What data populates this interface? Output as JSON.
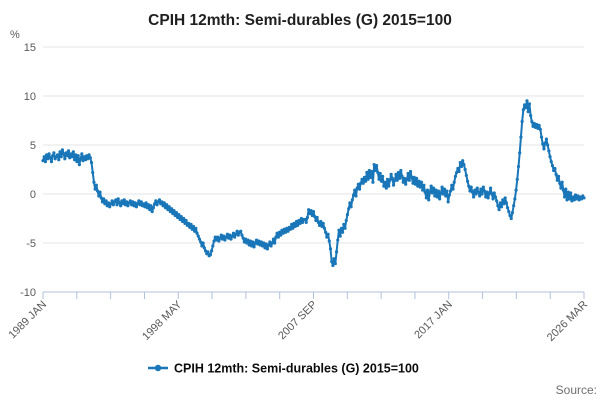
{
  "title": "CPIH 12mth: Semi-durables (G) 2015=100",
  "y_axis": {
    "unit_label": "%",
    "tick_labels": [
      "15",
      "10",
      "5",
      "0",
      "-5",
      "-10"
    ],
    "tick_values": [
      15,
      10,
      5,
      0,
      -5,
      -10
    ],
    "min": -10,
    "max": 15
  },
  "x_axis": {
    "tick_labels": [
      "1989 JAN",
      "1998 MAY",
      "2007 SEP",
      "2017 JAN",
      "2026 MAR"
    ],
    "minor_tick_count": 17,
    "labeled_every": 4
  },
  "legend": {
    "label": "CPIH 12mth: Semi-durables (G) 2015=100"
  },
  "source_label": "Source:",
  "colors": {
    "line": "#1976b8",
    "grid": "#e6e6e6",
    "axis": "#b0c1db",
    "label_text": "#595959",
    "title_text": "#1f1f1f",
    "legend_text": "#0c0c0c",
    "source_text": "#6f6f6f"
  },
  "chart_data": {
    "type": "line",
    "title": "CPIH 12mth: Semi-durables (G) 2015=100",
    "xlabel": "",
    "ylabel": "%",
    "ylim": [
      -10,
      15
    ],
    "grid": "horizontal",
    "legend_position": "bottom",
    "x_start": "1989 JAN",
    "x_end": "2026 MAR",
    "frequency": "monthly",
    "series": [
      {
        "name": "CPIH 12mth: Semi-durables (G) 2015=100",
        "values": [
          3.4,
          3.8,
          3.3,
          4.0,
          3.6,
          4.1,
          3.7,
          3.3,
          3.9,
          4.2,
          3.6,
          3.8,
          4.0,
          3.5,
          4.3,
          3.8,
          4.5,
          4.1,
          3.6,
          4.2,
          3.9,
          4.4,
          3.7,
          4.1,
          3.8,
          4.3,
          3.5,
          4.0,
          3.3,
          3.9,
          3.0,
          3.6,
          4.1,
          3.4,
          3.8,
          3.5,
          3.9,
          3.6,
          4.0,
          3.7,
          3.2,
          2.2,
          1.2,
          0.5,
          0.9,
          0.3,
          -0.2,
          0.2,
          -0.4,
          -0.8,
          -0.5,
          -1.0,
          -0.7,
          -1.2,
          -0.9,
          -1.3,
          -1.0,
          -0.7,
          -1.1,
          -0.8,
          -0.6,
          -1.1,
          -0.5,
          -0.9,
          -1.2,
          -0.7,
          -1.0,
          -0.6,
          -1.1,
          -0.8,
          -1.2,
          -0.9,
          -0.7,
          -1.1,
          -0.8,
          -1.2,
          -0.9,
          -1.3,
          -1.0,
          -0.7,
          -1.1,
          -0.8,
          -1.2,
          -1.0,
          -1.3,
          -0.9,
          -1.4,
          -1.1,
          -1.6,
          -1.2,
          -1.8,
          -1.4,
          -1.0,
          -0.7,
          -1.1,
          -0.8,
          -0.6,
          -1.0,
          -0.8,
          -1.2,
          -0.9,
          -1.4,
          -1.1,
          -1.6,
          -1.3,
          -1.8,
          -1.5,
          -2.0,
          -1.7,
          -2.2,
          -1.9,
          -2.4,
          -2.1,
          -2.6,
          -2.3,
          -2.8,
          -2.5,
          -3.0,
          -2.7,
          -3.2,
          -3.0,
          -3.4,
          -3.1,
          -3.6,
          -3.3,
          -3.8,
          -3.5,
          -4.0,
          -4.3,
          -4.6,
          -4.9,
          -5.3,
          -5.0,
          -5.5,
          -5.8,
          -6.1,
          -5.9,
          -6.3,
          -6.2,
          -5.8,
          -5.3,
          -4.8,
          -4.4,
          -4.7,
          -4.4,
          -4.8,
          -4.5,
          -4.2,
          -4.6,
          -4.3,
          -4.7,
          -4.4,
          -4.1,
          -4.5,
          -4.2,
          -4.6,
          -4.3,
          -4.0,
          -4.4,
          -4.1,
          -3.8,
          -4.2,
          -3.9,
          -3.8,
          -4.2,
          -4.5,
          -4.9,
          -4.6,
          -5.0,
          -4.7,
          -5.2,
          -4.8,
          -5.3,
          -4.9,
          -5.4,
          -5.0,
          -4.7,
          -5.1,
          -4.8,
          -5.2,
          -4.9,
          -5.3,
          -5.0,
          -5.5,
          -5.1,
          -5.6,
          -5.2,
          -4.9,
          -5.3,
          -5.0,
          -4.6,
          -5.0,
          -4.4,
          -4.0,
          -4.4,
          -3.9,
          -4.2,
          -3.7,
          -4.0,
          -3.6,
          -3.9,
          -3.5,
          -3.8,
          -3.4,
          -3.6,
          -3.1,
          -3.5,
          -3.0,
          -3.3,
          -2.8,
          -3.2,
          -2.7,
          -3.0,
          -2.5,
          -2.9,
          -2.6,
          -2.6,
          -2.9,
          -2.4,
          -1.6,
          -2.0,
          -1.7,
          -2.2,
          -1.8,
          -2.3,
          -2.7,
          -2.4,
          -2.9,
          -3.2,
          -2.8,
          -3.3,
          -3.0,
          -3.5,
          -3.9,
          -4.4,
          -4.1,
          -4.8,
          -5.6,
          -6.9,
          -7.3,
          -6.6,
          -7.1,
          -5.9,
          -4.7,
          -3.7,
          -4.3,
          -3.5,
          -3.9,
          -3.1,
          -3.5,
          -2.7,
          -2.1,
          -1.5,
          -0.9,
          -1.3,
          -0.6,
          -0.1,
          0.4,
          -0.2,
          0.6,
          1.0,
          0.5,
          1.1,
          1.5,
          1.1,
          1.7,
          1.3,
          2.2,
          1.5,
          2.4,
          1.7,
          2.3,
          1.2,
          3.0,
          2.4,
          2.9,
          2.2,
          1.5,
          2.1,
          1.3,
          1.8,
          0.8,
          1.2,
          0.6,
          1.5,
          0.8,
          1.4,
          2.0,
          1.6,
          0.9,
          1.4,
          2.0,
          1.4,
          2.2,
          1.6,
          2.4,
          1.8,
          1.2,
          1.6,
          1.0,
          1.5,
          2.1,
          1.4,
          2.3,
          1.7,
          1.1,
          1.7,
          1.0,
          1.6,
          0.8,
          1.3,
          0.7,
          1.2,
          0.4,
          0.9,
          0.2,
          -0.4,
          0.4,
          -0.6,
          0.2,
          0.8,
          0.1,
          0.6,
          -0.2,
          0.4,
          -0.3,
          0.3,
          -0.5,
          0.1,
          0.7,
          0.0,
          0.5,
          -0.2,
          0.3,
          -0.8,
          -0.1,
          0.3,
          0.9,
          0.5,
          1.2,
          1.8,
          2.2,
          2.6,
          2.3,
          3.2,
          2.8,
          3.4,
          3.0,
          2.5,
          1.9,
          1.3,
          0.8,
          0.3,
          0.7,
          0.2,
          -0.3,
          0.4,
          0.0,
          0.6,
          0.2,
          -0.2,
          0.5,
          0.0,
          0.7,
          0.3,
          -0.3,
          0.2,
          -0.4,
          0.1,
          0.6,
          0.0,
          -0.5,
          0.1,
          -0.3,
          -0.7,
          -1.2,
          -1.6,
          -0.9,
          -1.3,
          -0.6,
          -1.0,
          -0.4,
          -0.9,
          -1.4,
          -1.8,
          -2.2,
          -2.5,
          -1.9,
          -1.2,
          -0.5,
          0.4,
          1.5,
          2.8,
          4.2,
          5.8,
          7.4,
          8.6,
          9.1,
          8.8,
          9.5,
          8.4,
          9.2,
          8.0,
          7.4,
          6.9,
          7.2,
          6.8,
          7.1,
          6.7,
          7.0,
          6.6,
          5.8,
          5.1,
          4.6,
          5.2,
          5.6,
          5.0,
          4.4,
          3.8,
          3.3,
          2.9,
          2.4,
          2.6,
          2.0,
          1.4,
          1.8,
          1.1,
          0.6,
          1.2,
          0.4,
          -0.3,
          0.5,
          -0.6,
          0.2,
          -0.5,
          0.1,
          -0.7,
          -0.3,
          -0.6,
          -0.1,
          -0.5,
          -0.2,
          -0.6,
          -0.3,
          -0.5,
          -0.2,
          -0.4
        ]
      }
    ]
  }
}
